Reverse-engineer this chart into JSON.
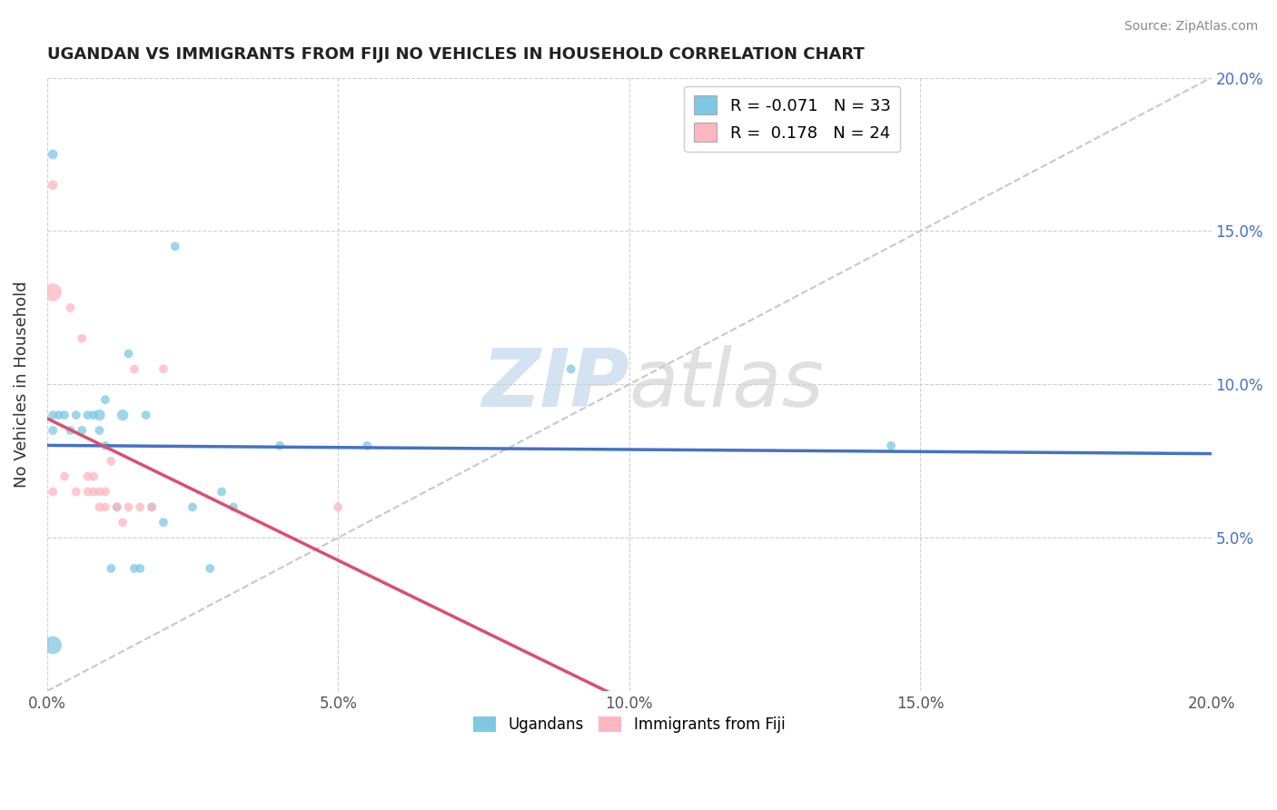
{
  "title": "UGANDAN VS IMMIGRANTS FROM FIJI NO VEHICLES IN HOUSEHOLD CORRELATION CHART",
  "source": "Source: ZipAtlas.com",
  "ylabel": "No Vehicles in Household",
  "watermark_zip": "ZIP",
  "watermark_atlas": "atlas",
  "xlim": [
    0.0,
    0.2
  ],
  "ylim": [
    0.0,
    0.2
  ],
  "xticks": [
    0.0,
    0.05,
    0.1,
    0.15,
    0.2
  ],
  "yticks": [
    0.0,
    0.05,
    0.1,
    0.15,
    0.2
  ],
  "xticklabels": [
    "0.0%",
    "5.0%",
    "10.0%",
    "15.0%",
    "20.0%"
  ],
  "right_yticklabels": [
    "",
    "5.0%",
    "10.0%",
    "15.0%",
    "20.0%"
  ],
  "ugandan_color": "#7ec8e3",
  "fiji_color": "#ffb6c1",
  "ugandan_R": -0.071,
  "ugandan_N": 33,
  "fiji_R": 0.178,
  "fiji_N": 24,
  "diagonal_color": "#c8c8c8",
  "ugandan_line_color": "#4472c4",
  "fiji_line_color": "#d94f6e",
  "ugandan_points_x": [
    0.001,
    0.001,
    0.001,
    0.002,
    0.003,
    0.004,
    0.005,
    0.006,
    0.007,
    0.008,
    0.009,
    0.009,
    0.01,
    0.01,
    0.011,
    0.012,
    0.013,
    0.014,
    0.015,
    0.016,
    0.017,
    0.018,
    0.02,
    0.022,
    0.025,
    0.028,
    0.03,
    0.032,
    0.04,
    0.055,
    0.09,
    0.145,
    0.001
  ],
  "ugandan_points_y": [
    0.175,
    0.09,
    0.085,
    0.09,
    0.09,
    0.085,
    0.09,
    0.085,
    0.09,
    0.09,
    0.09,
    0.085,
    0.08,
    0.095,
    0.04,
    0.06,
    0.09,
    0.11,
    0.04,
    0.04,
    0.09,
    0.06,
    0.055,
    0.145,
    0.06,
    0.04,
    0.065,
    0.06,
    0.08,
    0.08,
    0.105,
    0.08,
    0.015
  ],
  "ugandan_sizes": [
    60,
    50,
    50,
    50,
    50,
    50,
    50,
    50,
    50,
    50,
    80,
    50,
    50,
    50,
    50,
    50,
    80,
    50,
    50,
    50,
    50,
    50,
    50,
    50,
    50,
    50,
    50,
    50,
    50,
    50,
    50,
    50,
    200
  ],
  "fiji_points_x": [
    0.001,
    0.001,
    0.003,
    0.004,
    0.005,
    0.006,
    0.007,
    0.007,
    0.008,
    0.008,
    0.009,
    0.009,
    0.01,
    0.01,
    0.011,
    0.012,
    0.013,
    0.014,
    0.015,
    0.016,
    0.018,
    0.02,
    0.05,
    0.001
  ],
  "fiji_points_y": [
    0.165,
    0.065,
    0.07,
    0.125,
    0.065,
    0.115,
    0.065,
    0.07,
    0.065,
    0.07,
    0.065,
    0.06,
    0.065,
    0.06,
    0.075,
    0.06,
    0.055,
    0.06,
    0.105,
    0.06,
    0.06,
    0.105,
    0.06,
    0.13
  ],
  "fiji_sizes": [
    60,
    50,
    50,
    50,
    50,
    50,
    50,
    50,
    50,
    50,
    50,
    50,
    50,
    50,
    50,
    50,
    50,
    50,
    50,
    50,
    50,
    50,
    50,
    200
  ]
}
